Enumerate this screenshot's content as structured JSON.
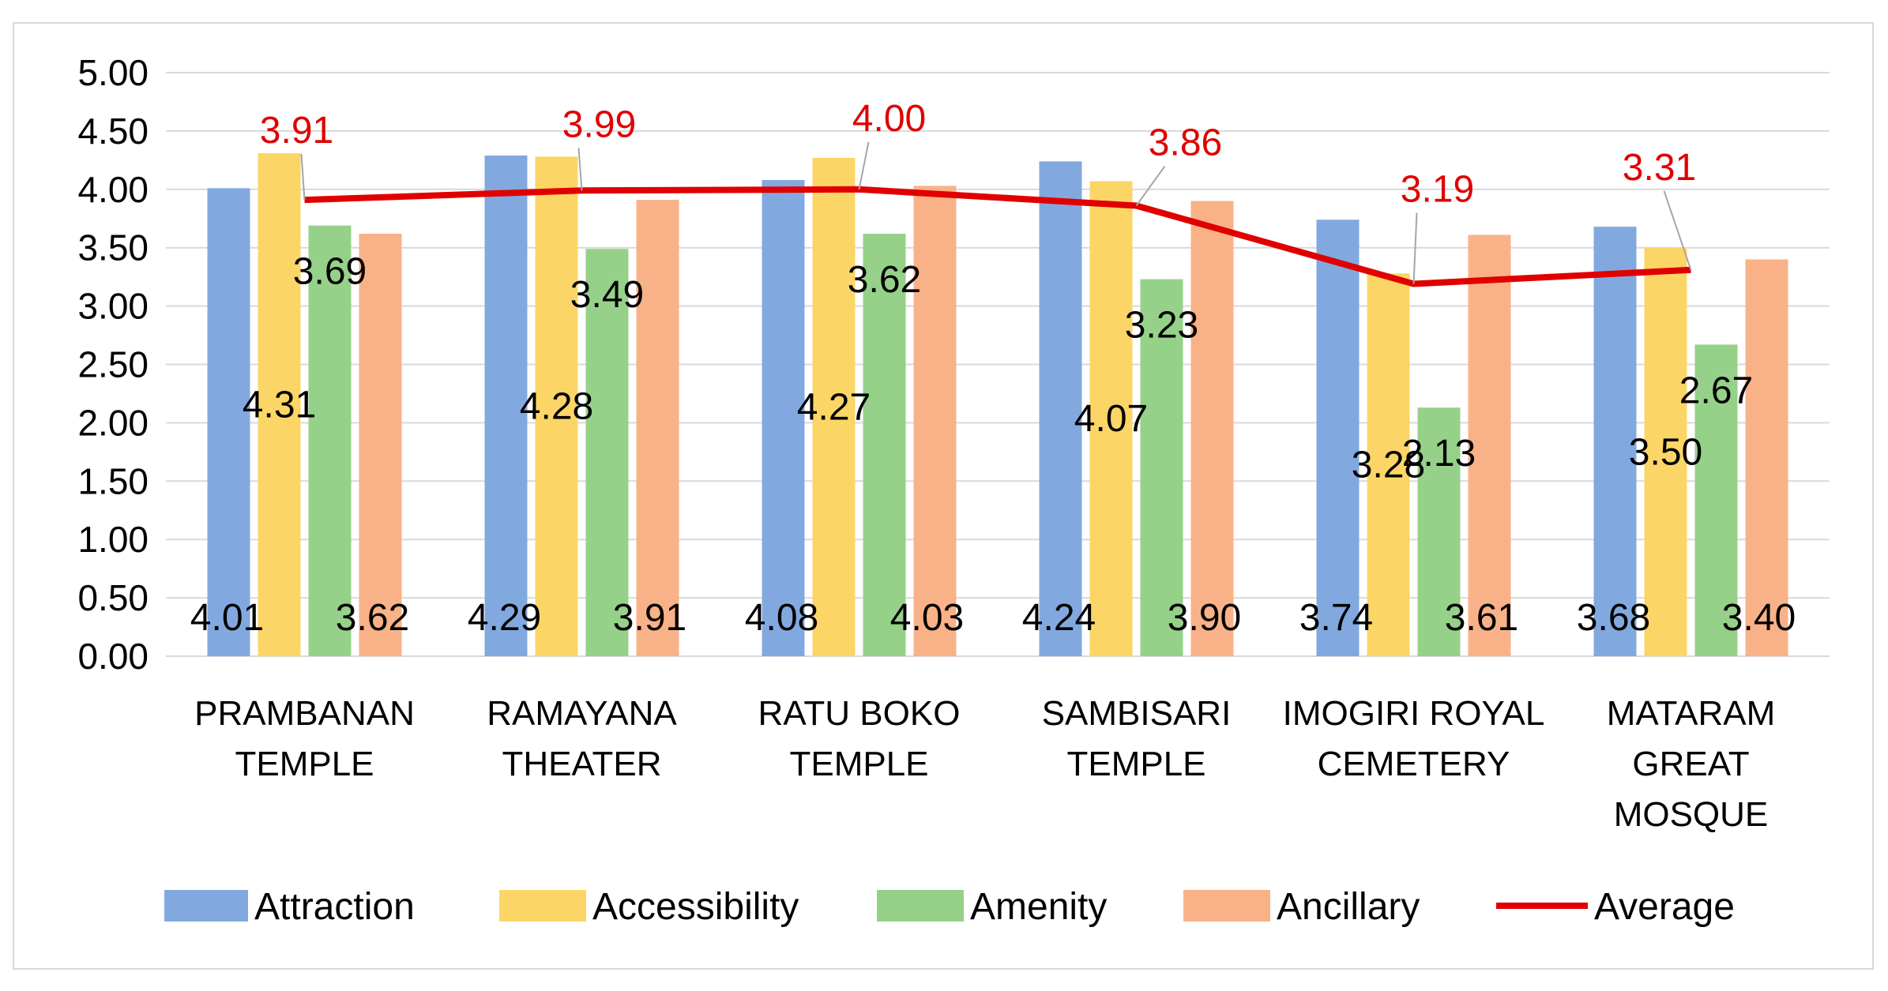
{
  "chart_data": {
    "type": "bar",
    "title": "",
    "xlabel": "",
    "ylabel": "",
    "ylim": [
      0,
      5
    ],
    "yticks": [
      "0.00",
      "0.50",
      "1.00",
      "1.50",
      "2.00",
      "2.50",
      "3.00",
      "3.50",
      "4.00",
      "4.50",
      "5.00"
    ],
    "grid": true,
    "legend_position": "bottom",
    "categories": [
      [
        "PRAMBANAN",
        "TEMPLE"
      ],
      [
        "RAMAYANA",
        "THEATER"
      ],
      [
        "RATU BOKO",
        "TEMPLE"
      ],
      [
        "SAMBISARI",
        "TEMPLE"
      ],
      [
        "IMOGIRI ROYAL",
        "CEMETERY"
      ],
      [
        "MATARAM",
        "GREAT",
        "MOSQUE"
      ]
    ],
    "series": [
      {
        "name": "Attraction",
        "type": "bar",
        "color": "#82a9df",
        "values": [
          4.01,
          4.29,
          4.08,
          4.24,
          3.74,
          3.68
        ],
        "labels": [
          "4.01",
          "4.29",
          "4.08",
          "4.24",
          "3.74",
          "3.68"
        ]
      },
      {
        "name": "Accessibility",
        "type": "bar",
        "color": "#fbd666",
        "values": [
          4.31,
          4.28,
          4.27,
          4.07,
          3.28,
          3.5
        ],
        "labels": [
          "4.31",
          "4.28",
          "4.27",
          "4.07",
          "3.28",
          "3.50"
        ]
      },
      {
        "name": "Amenity",
        "type": "bar",
        "color": "#96d189",
        "values": [
          3.69,
          3.49,
          3.62,
          3.23,
          2.13,
          2.67
        ],
        "labels": [
          "3.69",
          "3.49",
          "3.62",
          "3.23",
          "2.13",
          "2.67"
        ]
      },
      {
        "name": "Ancillary",
        "type": "bar",
        "color": "#f9b287",
        "values": [
          3.62,
          3.91,
          4.03,
          3.9,
          3.61,
          3.4
        ],
        "labels": [
          "3.62",
          "3.91",
          "4.03",
          "3.90",
          "3.61",
          "3.40"
        ]
      },
      {
        "name": "Average",
        "type": "line",
        "color": "#e00000",
        "values": [
          3.91,
          3.99,
          4.0,
          3.86,
          3.19,
          3.31
        ],
        "labels": [
          "3.91",
          "3.99",
          "4.00",
          "3.86",
          "3.19",
          "3.31"
        ]
      }
    ]
  }
}
